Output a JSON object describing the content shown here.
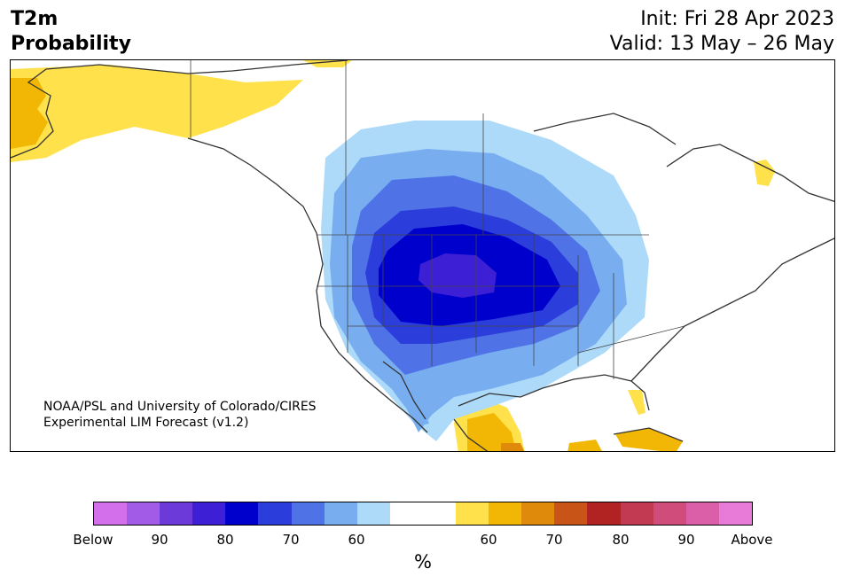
{
  "title": {
    "line1": "T2m",
    "line2": "Probability"
  },
  "dates": {
    "init": "Init: Fri 28 Apr 2023",
    "valid": "Valid: 13 May – 26 May"
  },
  "credit": {
    "line1": "NOAA/PSL and University of Colorado/CIRES",
    "line2": "Experimental LIM Forecast (v1.2)"
  },
  "colorbar": {
    "colors": [
      "#d36fea",
      "#a25be6",
      "#6c3ad9",
      "#3d1fd5",
      "#0000cd",
      "#2b3ddb",
      "#4f73e6",
      "#78aef0",
      "#aedafa",
      "#ffffff",
      "#ffffff",
      "#fee14b",
      "#f2b705",
      "#e08a0c",
      "#c85417",
      "#b12222",
      "#c23a52",
      "#d04c7b",
      "#db5fa8",
      "#e87ad8"
    ],
    "ticks": [
      "Below",
      "90",
      "80",
      "70",
      "60",
      "60",
      "70",
      "80",
      "90",
      "Above"
    ],
    "unit": "%"
  },
  "map_colors": {
    "below_55": "#aedafa",
    "below_60": "#78aef0",
    "below_65": "#4f73e6",
    "below_70": "#2b3ddb",
    "below_75": "#0000cd",
    "below_80": "#3d1fd5",
    "above_55": "#fee14b",
    "above_60": "#f2b705",
    "above_65": "#e08a0c"
  }
}
